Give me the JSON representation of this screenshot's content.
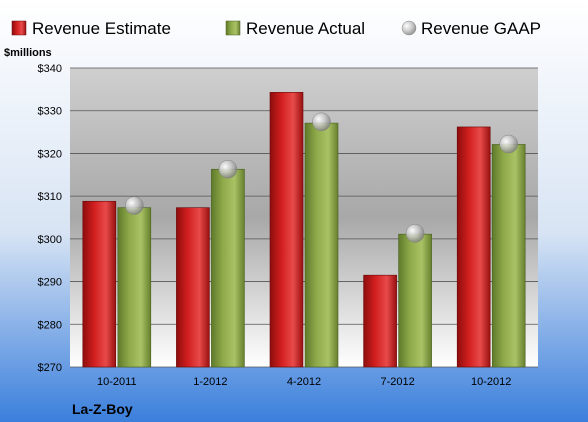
{
  "chart_data": {
    "type": "bar",
    "unit_label": "$millions",
    "company": "La-Z-Boy",
    "categories": [
      "10-2011",
      "1-2012",
      "4-2012",
      "7-2012",
      "10-2012"
    ],
    "series": [
      {
        "name": "Revenue Estimate",
        "kind": "bar",
        "color": "#d42020",
        "values": [
          308.8,
          307.3,
          334.3,
          291.5,
          326.2
        ]
      },
      {
        "name": "Revenue Actual",
        "kind": "bar",
        "color": "#8faa4a",
        "values": [
          307.3,
          316.3,
          327.1,
          301.1,
          322.1
        ]
      },
      {
        "name": "Revenue GAAP",
        "kind": "marker",
        "color": "#b8b8b8",
        "values": [
          307.8,
          316.3,
          327.4,
          301.3,
          322.2
        ]
      }
    ],
    "ylim": [
      270,
      340
    ],
    "yticks": [
      "$270",
      "$280",
      "$290",
      "$300",
      "$310",
      "$320",
      "$330",
      "$340"
    ],
    "yticks_values": [
      270,
      280,
      290,
      300,
      310,
      320,
      330,
      340
    ],
    "grid": true,
    "legend": "top"
  }
}
